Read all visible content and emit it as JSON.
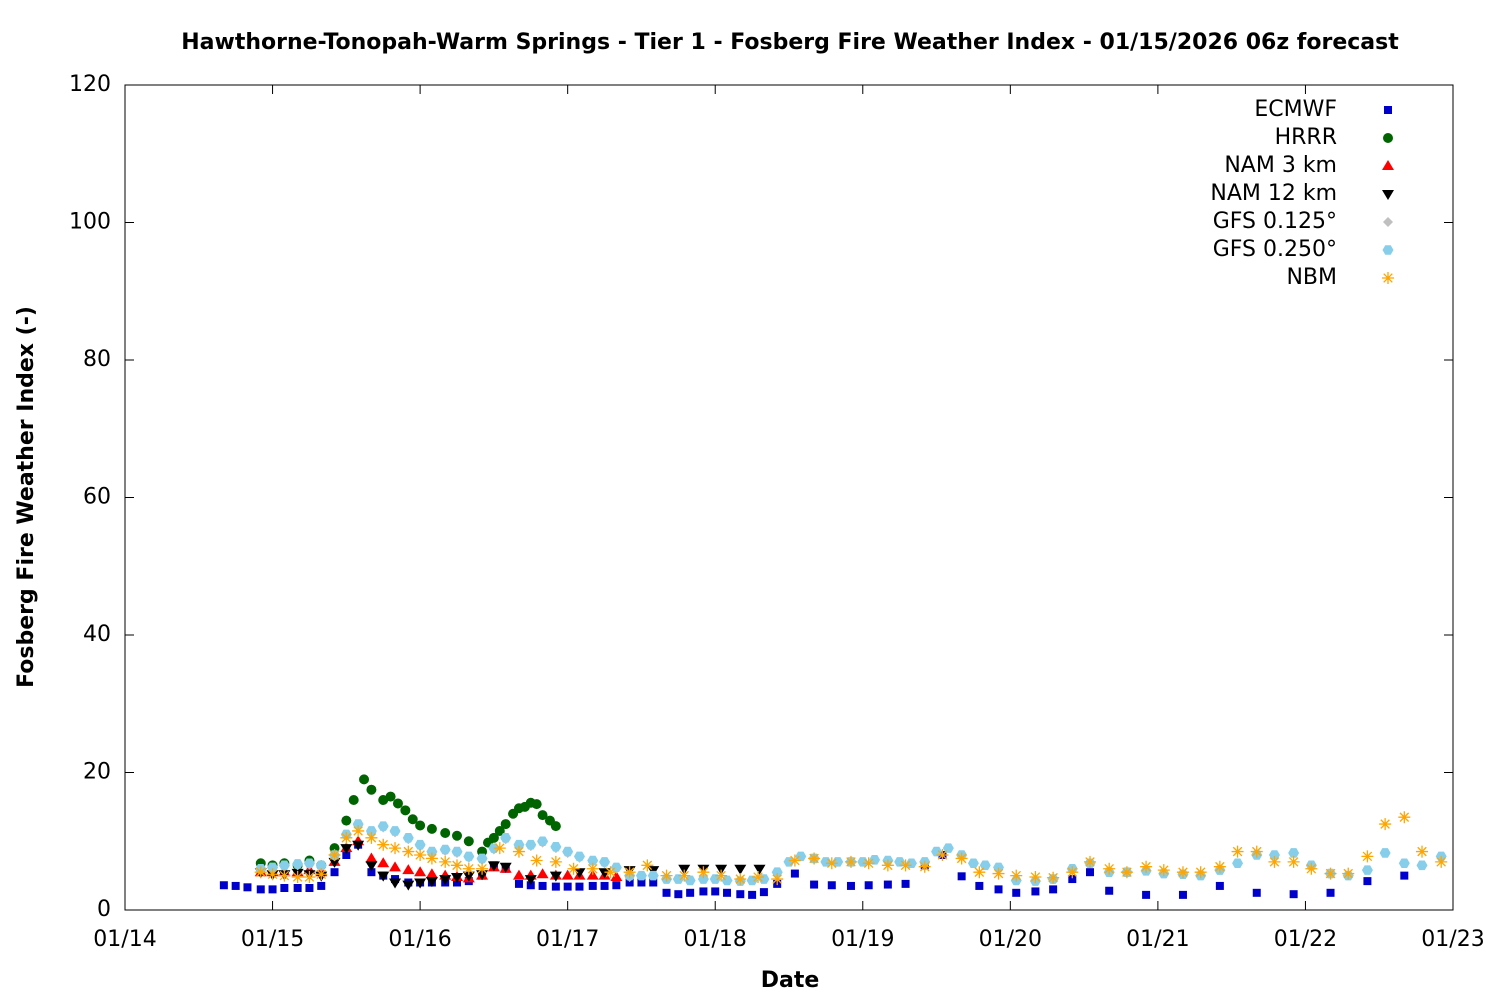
{
  "chart_data": {
    "type": "scatter",
    "title": "Hawthorne-Tonopah-Warm Springs - Tier 1 - Fosberg Fire Weather Index - 01/15/2026 06z forecast",
    "x_label": "Date",
    "y_label": "Fosberg Fire Weather Index (-)",
    "xlim": [
      14,
      23
    ],
    "xticks": [
      {
        "value": 14,
        "label": "01/14"
      },
      {
        "value": 15,
        "label": "01/15"
      },
      {
        "value": 16,
        "label": "01/16"
      },
      {
        "value": 17,
        "label": "01/17"
      },
      {
        "value": 18,
        "label": "01/18"
      },
      {
        "value": 19,
        "label": "01/19"
      },
      {
        "value": 20,
        "label": "01/20"
      },
      {
        "value": 21,
        "label": "01/21"
      },
      {
        "value": 22,
        "label": "01/22"
      },
      {
        "value": 23,
        "label": "01/23"
      }
    ],
    "ylim": [
      0,
      120
    ],
    "yticks": [
      0,
      20,
      40,
      60,
      80,
      100,
      120
    ],
    "grid": false,
    "legend": "upper right",
    "series": [
      {
        "name": "ECMWF",
        "color": "#0000cc",
        "x": [
          14.67,
          14.75,
          14.83,
          14.92,
          15.0,
          15.08,
          15.17,
          15.25,
          15.33,
          15.42,
          15.5,
          15.58,
          15.67,
          15.75,
          15.83,
          15.92,
          16.0,
          16.08,
          16.17,
          16.25,
          16.33,
          16.42,
          16.5,
          16.58,
          16.67,
          16.75,
          16.83,
          16.92,
          17.0,
          17.08,
          17.17,
          17.25,
          17.33,
          17.42,
          17.5,
          17.58,
          17.67,
          17.75,
          17.83,
          17.92,
          18.0,
          18.08,
          18.17,
          18.25,
          18.33,
          18.42,
          18.54,
          18.67,
          18.79,
          18.92,
          19.04,
          19.17,
          19.29,
          19.42,
          19.54,
          19.67,
          19.79,
          19.92,
          20.04,
          20.17,
          20.29,
          20.42,
          20.54,
          20.67,
          20.92,
          21.17,
          21.42,
          21.67,
          21.92,
          22.17,
          22.42,
          22.67
        ],
        "values": [
          3.6,
          3.5,
          3.3,
          3.0,
          3.0,
          3.2,
          3.2,
          3.2,
          3.5,
          5.5,
          8,
          9.5,
          5.5,
          5,
          4.5,
          4,
          4,
          4,
          4,
          4,
          4.2,
          5,
          6.5,
          6,
          3.8,
          3.6,
          3.5,
          3.4,
          3.4,
          3.4,
          3.5,
          3.5,
          3.6,
          4,
          4,
          4,
          2.5,
          2.3,
          2.5,
          2.7,
          2.7,
          2.5,
          2.3,
          2.2,
          2.6,
          3.8,
          5.3,
          3.7,
          3.6,
          3.5,
          3.6,
          3.7,
          3.8,
          6.5,
          8,
          4.9,
          3.5,
          3,
          2.5,
          2.7,
          3,
          4.5,
          5.5,
          2.8,
          2.2,
          2.2,
          3.5,
          2.5,
          2.3,
          2.5,
          4.2,
          5
        ]
      },
      {
        "name": "HRRR",
        "color": "#006400",
        "x": [
          14.92,
          15.0,
          15.08,
          15.17,
          15.25,
          15.33,
          15.42,
          15.5,
          15.55,
          15.62,
          15.67,
          15.75,
          15.8,
          15.85,
          15.9,
          15.95,
          16.0,
          16.08,
          16.17,
          16.25,
          16.33,
          16.42,
          16.46,
          16.5,
          16.54,
          16.58,
          16.63,
          16.67,
          16.71,
          16.75,
          16.79,
          16.83,
          16.88,
          16.92
        ],
        "values": [
          6.8,
          6.5,
          6.8,
          6.5,
          7.2,
          6.5,
          9,
          13,
          16,
          19,
          17.5,
          16,
          16.5,
          15.5,
          14.5,
          13.2,
          12.3,
          11.8,
          11.2,
          10.8,
          10,
          8.5,
          9.8,
          10.5,
          11.5,
          12.5,
          14,
          14.8,
          15,
          15.6,
          15.4,
          13.8,
          13,
          12.2
        ]
      },
      {
        "name": "NAM 3 km",
        "color": "#ff0000",
        "x": [
          14.92,
          15.0,
          15.08,
          15.17,
          15.25,
          15.33,
          15.42,
          15.5,
          15.58,
          15.67,
          15.75,
          15.83,
          15.92,
          16.0,
          16.08,
          16.17,
          16.25,
          16.33,
          16.42,
          16.5,
          16.58,
          16.67,
          16.75,
          16.83,
          16.92,
          17.0,
          17.08,
          17.17,
          17.25,
          17.33
        ],
        "values": [
          5.5,
          5.5,
          5.5,
          5.5,
          5.8,
          5.5,
          7,
          9,
          10,
          7.5,
          6.8,
          6.2,
          5.8,
          5.5,
          5.2,
          5,
          4.8,
          4.6,
          5,
          6.2,
          6,
          5,
          5,
          5.2,
          5,
          5,
          5,
          5,
          5,
          4.8
        ]
      },
      {
        "name": "NAM 12 km",
        "color": "#000000",
        "x": [
          14.92,
          15.0,
          15.08,
          15.17,
          15.25,
          15.33,
          15.42,
          15.5,
          15.58,
          15.67,
          15.75,
          15.83,
          15.92,
          16.0,
          16.08,
          16.17,
          16.25,
          16.33,
          16.42,
          16.5,
          16.58,
          16.75,
          16.92,
          17.08,
          17.25,
          17.42,
          17.58,
          17.79,
          17.92,
          18.04,
          18.17,
          18.3
        ],
        "values": [
          5.5,
          5.2,
          5.2,
          5.4,
          5.2,
          5.0,
          7,
          9,
          9.5,
          6.5,
          5,
          4,
          3.7,
          4,
          4.2,
          4.5,
          4.8,
          5,
          5.2,
          6.5,
          6.3,
          4.5,
          5,
          5.5,
          5.5,
          5.8,
          5.8,
          6,
          6,
          6,
          6,
          6
        ]
      },
      {
        "name": "GFS 0.125°",
        "color": "#c0c0c0",
        "x": [
          14.92,
          15.0,
          15.08,
          15.17,
          15.25,
          15.33,
          15.42,
          15.5,
          15.58,
          15.67,
          15.75,
          15.83,
          15.92,
          16.0,
          16.08,
          16.17,
          16.25,
          16.33,
          16.42,
          16.5,
          16.58,
          16.67,
          16.75,
          16.83,
          16.92,
          17.0,
          17.08,
          17.17,
          17.25,
          17.33,
          17.42
        ],
        "values": [
          5.8,
          6,
          6.3,
          6.5,
          6.6,
          6.3,
          7.8,
          10.8,
          12.3,
          11.3,
          12,
          11.3,
          10.3,
          9.3,
          8.3,
          8.6,
          8.3,
          7.6,
          7.3,
          8.8,
          10.3,
          9.3,
          9.3,
          9.8,
          9,
          8.3,
          7.6,
          7,
          6.8,
          6,
          4.8
        ]
      },
      {
        "name": "GFS 0.250°",
        "color": "#87ceeb",
        "x": [
          14.92,
          15.0,
          15.08,
          15.17,
          15.25,
          15.33,
          15.42,
          15.5,
          15.58,
          15.67,
          15.75,
          15.83,
          15.92,
          16.0,
          16.08,
          16.17,
          16.25,
          16.33,
          16.42,
          16.5,
          16.58,
          16.67,
          16.75,
          16.83,
          16.92,
          17.0,
          17.08,
          17.17,
          17.25,
          17.33,
          17.42,
          17.5,
          17.58,
          17.67,
          17.75,
          17.83,
          17.92,
          18.0,
          18.08,
          18.17,
          18.25,
          18.33,
          18.42,
          18.5,
          18.58,
          18.67,
          18.75,
          18.83,
          18.92,
          19.0,
          19.08,
          19.17,
          19.25,
          19.33,
          19.42,
          19.5,
          19.58,
          19.67,
          19.75,
          19.83,
          19.92,
          20.04,
          20.17,
          20.29,
          20.42,
          20.54,
          20.67,
          20.79,
          20.92,
          21.04,
          21.17,
          21.29,
          21.42,
          21.54,
          21.67,
          21.79,
          21.92,
          22.04,
          22.17,
          22.29,
          22.42,
          22.54,
          22.67,
          22.79,
          22.92
        ],
        "values": [
          6,
          6.2,
          6.5,
          6.7,
          6.8,
          6.5,
          8,
          11,
          12.5,
          11.5,
          12.2,
          11.5,
          10.5,
          9.5,
          8.5,
          8.8,
          8.5,
          7.8,
          7.5,
          9,
          10.5,
          9.5,
          9.5,
          10,
          9.2,
          8.5,
          7.8,
          7.2,
          7,
          6.2,
          5,
          5,
          5,
          4.5,
          4.5,
          4.3,
          4.5,
          4.5,
          4.3,
          4.2,
          4.3,
          4.5,
          5.5,
          7,
          7.8,
          7.5,
          7,
          7,
          7,
          7,
          7.3,
          7.2,
          7,
          6.8,
          7,
          8.5,
          9,
          8,
          6.8,
          6.5,
          6.2,
          4.3,
          4.2,
          4.5,
          6,
          6.8,
          5.5,
          5.5,
          5.7,
          5.3,
          5.2,
          5,
          5.8,
          6.8,
          8,
          8,
          8.3,
          6.5,
          5.3,
          5,
          5.8,
          8.3,
          6.8,
          6.5,
          7.8
        ]
      },
      {
        "name": "NBM",
        "color": "#ffa500",
        "x": [
          14.92,
          15.0,
          15.08,
          15.17,
          15.25,
          15.33,
          15.42,
          15.5,
          15.58,
          15.67,
          15.75,
          15.83,
          15.92,
          16.0,
          16.08,
          16.17,
          16.25,
          16.33,
          16.42,
          16.54,
          16.67,
          16.79,
          16.92,
          17.04,
          17.17,
          17.29,
          17.42,
          17.54,
          17.67,
          17.79,
          17.92,
          18.04,
          18.17,
          18.29,
          18.42,
          18.54,
          18.67,
          18.79,
          18.92,
          19.04,
          19.17,
          19.29,
          19.42,
          19.54,
          19.67,
          19.79,
          19.92,
          20.04,
          20.17,
          20.29,
          20.42,
          20.54,
          20.67,
          20.79,
          20.92,
          21.04,
          21.17,
          21.29,
          21.42,
          21.54,
          21.67,
          21.79,
          21.92,
          22.04,
          22.17,
          22.29,
          22.42,
          22.54,
          22.67,
          22.79,
          22.92
        ],
        "values": [
          5.5,
          5.2,
          5,
          4.8,
          4.8,
          5.2,
          8,
          10.5,
          11.5,
          10.5,
          9.5,
          9,
          8.5,
          8,
          7.5,
          7,
          6.5,
          6,
          6,
          9,
          8.5,
          7.2,
          7,
          6,
          6,
          5.5,
          5.5,
          6.5,
          5,
          5,
          5.5,
          5,
          4.5,
          4.8,
          4.5,
          7.2,
          7.5,
          6.8,
          7,
          6.8,
          6.5,
          6.5,
          6.3,
          8,
          7.5,
          5.5,
          5.3,
          5,
          4.8,
          4.7,
          5.5,
          7,
          6,
          5.5,
          6.3,
          5.8,
          5.5,
          5.5,
          6.3,
          8.5,
          8.5,
          7,
          7,
          6,
          5.3,
          5.3,
          7.8,
          12.5,
          13.5,
          8.5,
          7
        ]
      }
    ]
  }
}
